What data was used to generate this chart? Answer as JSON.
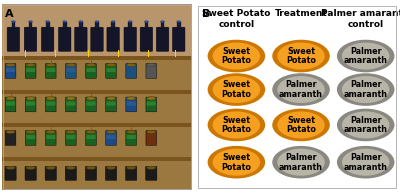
{
  "panel_a_label": "A",
  "panel_b_label": "B",
  "col_headers": [
    "Sweet Potato\ncontrol",
    "Treatment",
    "Palmer amaranth\ncontrol"
  ],
  "rows": [
    [
      "Sweet\nPotato",
      "Sweet\nPotato",
      "Palmer\namaranth"
    ],
    [
      "Sweet\nPotato",
      "Palmer\namaranth",
      "Palmer\namaranth"
    ],
    [
      "Sweet\nPotato",
      "Sweet\nPotato",
      "Palmer\namaranth"
    ],
    [
      "Sweet\nPotato",
      "Palmer\namaranth",
      "Palmer\namaranth"
    ]
  ],
  "orange_color": "#F5A020",
  "gray_color": "#B8B5A8",
  "outer_orange": "#CC7700",
  "outer_gray": "#8A8880",
  "bg_color": "#F8F8F4",
  "header_fontsize": 6.5,
  "cell_fontsize": 5.8,
  "panel_split": 0.5,
  "photo_colors": {
    "bg_wood": "#A07840",
    "shelf_wood": "#8B6520",
    "bottle_dark": "#1a1a30",
    "pot_green1": "#1a5520",
    "pot_green2": "#2a7030",
    "pot_dark": "#1a1a1a",
    "pot_blue": "#1a3060",
    "soil": "#7a5510",
    "soil_dark": "#4a3508"
  }
}
